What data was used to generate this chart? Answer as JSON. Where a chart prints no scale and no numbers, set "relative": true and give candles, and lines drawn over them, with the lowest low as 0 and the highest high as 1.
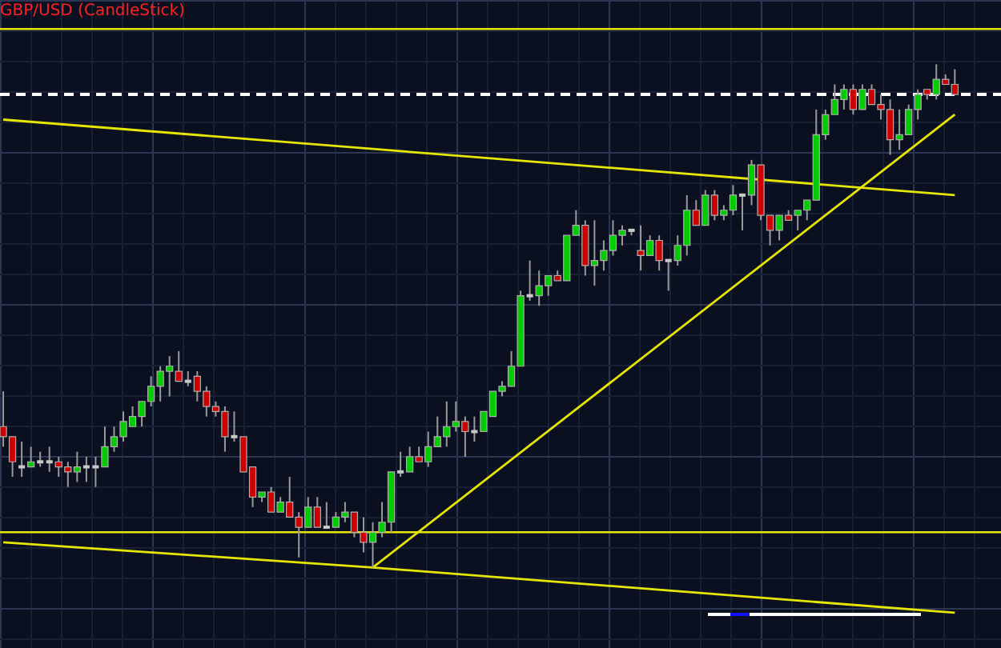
{
  "chart_data": {
    "type": "candlestick",
    "title": "GBP/USD (CandleStick)",
    "relative": true,
    "grid": true,
    "legend": false,
    "categories": [
      null,
      null,
      null,
      null,
      null,
      null,
      null,
      null,
      null,
      null,
      null,
      null,
      null,
      null,
      null,
      null,
      null,
      null,
      null,
      null,
      null,
      null,
      null,
      null,
      null,
      null,
      null,
      null,
      null,
      null,
      null,
      null,
      null,
      null,
      null,
      null,
      null,
      null,
      null,
      null,
      null,
      null,
      null,
      null,
      null,
      null,
      null,
      null,
      null,
      null,
      null,
      null,
      null,
      null,
      null,
      null,
      null,
      null,
      null,
      null,
      null,
      null,
      null,
      null,
      null,
      null,
      null,
      null,
      null,
      null,
      null,
      null,
      null,
      null,
      null,
      null,
      null,
      null,
      null,
      null,
      null,
      null,
      null,
      null,
      null,
      null,
      null,
      null,
      null,
      null,
      null,
      null,
      null,
      null,
      null,
      null,
      null,
      null,
      null,
      null,
      null,
      null,
      null,
      null
    ],
    "ohlc": [
      [
        0.28,
        0.35,
        0.24,
        0.26
      ],
      [
        0.26,
        0.26,
        0.18,
        0.21
      ],
      [
        0.2,
        0.25,
        0.18,
        0.2
      ],
      [
        0.2,
        0.24,
        0.2,
        0.21
      ],
      [
        0.21,
        0.23,
        0.2,
        0.21
      ],
      [
        0.21,
        0.24,
        0.19,
        0.21
      ],
      [
        0.21,
        0.22,
        0.18,
        0.2
      ],
      [
        0.2,
        0.21,
        0.16,
        0.19
      ],
      [
        0.19,
        0.23,
        0.17,
        0.2
      ],
      [
        0.2,
        0.22,
        0.17,
        0.2
      ],
      [
        0.2,
        0.22,
        0.16,
        0.2
      ],
      [
        0.2,
        0.28,
        0.2,
        0.24
      ],
      [
        0.24,
        0.28,
        0.23,
        0.26
      ],
      [
        0.26,
        0.31,
        0.25,
        0.29
      ],
      [
        0.28,
        0.32,
        0.28,
        0.3
      ],
      [
        0.3,
        0.33,
        0.28,
        0.33
      ],
      [
        0.33,
        0.38,
        0.32,
        0.36
      ],
      [
        0.36,
        0.4,
        0.33,
        0.39
      ],
      [
        0.39,
        0.42,
        0.34,
        0.4
      ],
      [
        0.39,
        0.43,
        0.37,
        0.37
      ],
      [
        0.37,
        0.39,
        0.36,
        0.37
      ],
      [
        0.38,
        0.39,
        0.33,
        0.35
      ],
      [
        0.35,
        0.36,
        0.3,
        0.32
      ],
      [
        0.32,
        0.33,
        0.3,
        0.31
      ],
      [
        0.31,
        0.32,
        0.23,
        0.26
      ],
      [
        0.26,
        0.31,
        0.25,
        0.26
      ],
      [
        0.26,
        0.26,
        0.19,
        0.19
      ],
      [
        0.2,
        0.2,
        0.12,
        0.14
      ],
      [
        0.14,
        0.15,
        0.13,
        0.15
      ],
      [
        0.15,
        0.16,
        0.11,
        0.11
      ],
      [
        0.11,
        0.14,
        0.11,
        0.13
      ],
      [
        0.13,
        0.18,
        0.1,
        0.1
      ],
      [
        0.1,
        0.11,
        0.02,
        0.08
      ],
      [
        0.08,
        0.14,
        0.08,
        0.12
      ],
      [
        0.12,
        0.14,
        0.08,
        0.08
      ],
      [
        0.08,
        0.13,
        0.08,
        0.08
      ],
      [
        0.08,
        0.11,
        0.08,
        0.1
      ],
      [
        0.1,
        0.13,
        0.09,
        0.11
      ],
      [
        0.11,
        0.11,
        0.06,
        0.07
      ],
      [
        0.07,
        0.1,
        0.03,
        0.05
      ],
      [
        0.05,
        0.09,
        0.0,
        0.07
      ],
      [
        0.07,
        0.13,
        0.06,
        0.09
      ],
      [
        0.09,
        0.19,
        0.07,
        0.19
      ],
      [
        0.19,
        0.23,
        0.18,
        0.19
      ],
      [
        0.19,
        0.24,
        0.19,
        0.22
      ],
      [
        0.22,
        0.24,
        0.21,
        0.21
      ],
      [
        0.21,
        0.27,
        0.2,
        0.24
      ],
      [
        0.24,
        0.3,
        0.24,
        0.26
      ],
      [
        0.26,
        0.33,
        0.24,
        0.28
      ],
      [
        0.28,
        0.33,
        0.27,
        0.29
      ],
      [
        0.29,
        0.3,
        0.22,
        0.27
      ],
      [
        0.27,
        0.3,
        0.25,
        0.27
      ],
      [
        0.27,
        0.31,
        0.27,
        0.31
      ],
      [
        0.3,
        0.35,
        0.3,
        0.35
      ],
      [
        0.35,
        0.37,
        0.34,
        0.36
      ],
      [
        0.36,
        0.43,
        0.36,
        0.4
      ],
      [
        0.4,
        0.55,
        0.4,
        0.54
      ],
      [
        0.54,
        0.61,
        0.53,
        0.54
      ],
      [
        0.54,
        0.59,
        0.52,
        0.56
      ],
      [
        0.56,
        0.58,
        0.54,
        0.58
      ],
      [
        0.58,
        0.59,
        0.57,
        0.57
      ],
      [
        0.57,
        0.66,
        0.57,
        0.66
      ],
      [
        0.66,
        0.71,
        0.66,
        0.68
      ],
      [
        0.68,
        0.69,
        0.58,
        0.6
      ],
      [
        0.6,
        0.69,
        0.56,
        0.61
      ],
      [
        0.61,
        0.65,
        0.59,
        0.63
      ],
      [
        0.63,
        0.69,
        0.62,
        0.66
      ],
      [
        0.66,
        0.68,
        0.64,
        0.67
      ],
      [
        0.67,
        0.67,
        0.66,
        0.67
      ],
      [
        0.63,
        0.68,
        0.59,
        0.62
      ],
      [
        0.62,
        0.66,
        0.62,
        0.65
      ],
      [
        0.65,
        0.66,
        0.59,
        0.61
      ],
      [
        0.61,
        0.61,
        0.55,
        0.61
      ],
      [
        0.61,
        0.66,
        0.6,
        0.64
      ],
      [
        0.64,
        0.74,
        0.62,
        0.71
      ],
      [
        0.71,
        0.73,
        0.68,
        0.68
      ],
      [
        0.68,
        0.75,
        0.68,
        0.74
      ],
      [
        0.74,
        0.75,
        0.69,
        0.7
      ],
      [
        0.7,
        0.72,
        0.69,
        0.71
      ],
      [
        0.71,
        0.76,
        0.7,
        0.74
      ],
      [
        0.74,
        0.74,
        0.67,
        0.74
      ],
      [
        0.74,
        0.81,
        0.72,
        0.8
      ],
      [
        0.8,
        0.8,
        0.69,
        0.7
      ],
      [
        0.7,
        0.7,
        0.64,
        0.67
      ],
      [
        0.67,
        0.7,
        0.65,
        0.7
      ],
      [
        0.7,
        0.71,
        0.69,
        0.69
      ],
      [
        0.7,
        0.71,
        0.67,
        0.71
      ],
      [
        0.71,
        0.73,
        0.69,
        0.73
      ],
      [
        0.73,
        0.91,
        0.73,
        0.86
      ],
      [
        0.86,
        0.91,
        0.85,
        0.9
      ],
      [
        0.9,
        0.96,
        0.9,
        0.93
      ],
      [
        0.93,
        0.96,
        0.91,
        0.95
      ],
      [
        0.95,
        0.96,
        0.9,
        0.91
      ],
      [
        0.91,
        0.96,
        0.91,
        0.95
      ],
      [
        0.95,
        0.96,
        0.92,
        0.92
      ],
      [
        0.92,
        0.94,
        0.89,
        0.91
      ],
      [
        0.91,
        0.93,
        0.82,
        0.85
      ],
      [
        0.85,
        0.91,
        0.83,
        0.86
      ],
      [
        0.86,
        0.92,
        0.86,
        0.91
      ],
      [
        0.91,
        0.95,
        0.89,
        0.94
      ],
      [
        0.95,
        0.95,
        0.93,
        0.94
      ],
      [
        0.94,
        1.0,
        0.93,
        0.97
      ],
      [
        0.97,
        0.98,
        0.96,
        0.96
      ],
      [
        0.96,
        0.99,
        0.94,
        0.94
      ]
    ],
    "colors": [
      "#cc0000",
      "#cc0000",
      "#c8c8c8",
      "#00cc00",
      "#c8c8c8",
      "#c8c8c8",
      "#cc0000",
      "#cc0000",
      "#00cc00",
      "#c8c8c8",
      "#c8c8c8",
      "#00cc00",
      "#00cc00",
      "#00cc00",
      "#00cc00",
      "#00cc00",
      "#00cc00",
      "#00cc00",
      "#00cc00",
      "#cc0000",
      "#c8c8c8",
      "#cc0000",
      "#cc0000",
      "#cc0000",
      "#cc0000",
      "#c8c8c8",
      "#cc0000",
      "#cc0000",
      "#00cc00",
      "#cc0000",
      "#00cc00",
      "#cc0000",
      "#cc0000",
      "#00cc00",
      "#cc0000",
      "#c8c8c8",
      "#00cc00",
      "#00cc00",
      "#cc0000",
      "#cc0000",
      "#00cc00",
      "#00cc00",
      "#00cc00",
      "#c8c8c8",
      "#00cc00",
      "#cc0000",
      "#00cc00",
      "#00cc00",
      "#00cc00",
      "#00cc00",
      "#cc0000",
      "#c8c8c8",
      "#00cc00",
      "#00cc00",
      "#00cc00",
      "#00cc00",
      "#00cc00",
      "#c8c8c8",
      "#00cc00",
      "#00cc00",
      "#cc0000",
      "#00cc00",
      "#00cc00",
      "#cc0000",
      "#00cc00",
      "#00cc00",
      "#00cc00",
      "#00cc00",
      "#c8c8c8",
      "#cc0000",
      "#00cc00",
      "#cc0000",
      "#c8c8c8",
      "#00cc00",
      "#00cc00",
      "#cc0000",
      "#00cc00",
      "#cc0000",
      "#00cc00",
      "#00cc00",
      "#c8c8c8",
      "#00cc00",
      "#cc0000",
      "#cc0000",
      "#00cc00",
      "#cc0000",
      "#00cc00",
      "#00cc00",
      "#00cc00",
      "#00cc00",
      "#00cc00",
      "#00cc00",
      "#cc0000",
      "#00cc00",
      "#cc0000",
      "#cc0000",
      "#cc0000",
      "#00cc00",
      "#00cc00",
      "#00cc00",
      "#cc0000",
      "#00cc00",
      "#cc0000",
      "#cc0000"
    ],
    "series": [
      {
        "type": "line",
        "color": "#e6e600",
        "values": [
          null,
          null,
          null,
          null,
          null,
          null,
          null,
          null,
          null,
          null,
          null,
          null,
          null,
          null,
          null,
          null,
          null,
          null,
          null,
          null,
          null,
          null,
          null,
          null,
          null,
          null,
          null,
          null,
          null,
          null,
          null,
          null,
          null,
          null,
          null,
          null,
          null,
          null,
          null,
          null,
          0,
          null,
          null,
          null,
          null,
          null,
          null,
          null,
          null,
          null,
          null,
          null,
          null,
          null,
          null,
          null,
          null,
          null,
          null,
          null,
          null,
          null,
          null,
          null,
          null,
          null,
          null,
          null,
          null,
          null,
          null,
          null,
          null,
          null,
          null,
          null,
          null,
          null,
          null,
          null,
          null,
          null,
          null,
          null,
          null,
          null,
          null,
          null,
          null,
          null,
          null,
          null,
          null,
          null,
          null,
          null,
          null,
          null,
          null,
          null,
          null,
          null,
          null,
          0.9
        ]
      },
      {
        "type": "line",
        "color": "#e6e600",
        "values": [
          0.89,
          null,
          null,
          null,
          null,
          null,
          null,
          null,
          null,
          null,
          null,
          null,
          null,
          null,
          null,
          null,
          null,
          null,
          null,
          null,
          null,
          null,
          null,
          null,
          null,
          null,
          null,
          null,
          null,
          null,
          null,
          null,
          null,
          null,
          null,
          null,
          null,
          null,
          null,
          null,
          null,
          null,
          null,
          null,
          null,
          null,
          null,
          null,
          null,
          null,
          null,
          null,
          null,
          null,
          null,
          null,
          null,
          null,
          null,
          null,
          null,
          null,
          null,
          null,
          null,
          null,
          null,
          null,
          null,
          null,
          null,
          null,
          null,
          null,
          null,
          null,
          null,
          null,
          null,
          null,
          null,
          null,
          null,
          null,
          null,
          null,
          null,
          null,
          null,
          null,
          null,
          null,
          null,
          null,
          null,
          null,
          null,
          null,
          null,
          null,
          null,
          null,
          null,
          0.74
        ]
      },
      {
        "type": "line",
        "color": "#e6e600",
        "values": [
          0.05,
          null,
          null,
          null,
          null,
          null,
          null,
          null,
          null,
          null,
          null,
          null,
          null,
          null,
          null,
          null,
          null,
          null,
          null,
          null,
          null,
          null,
          null,
          null,
          null,
          null,
          null,
          null,
          null,
          null,
          null,
          null,
          null,
          null,
          null,
          null,
          null,
          null,
          null,
          null,
          0,
          null,
          null,
          null,
          null,
          null,
          null,
          null,
          null,
          null,
          null,
          null,
          null,
          null,
          null,
          null,
          null,
          null,
          null,
          null,
          null,
          null,
          null,
          null,
          null,
          null,
          null,
          null,
          null,
          null,
          null,
          null,
          null,
          null,
          null,
          null,
          null,
          null,
          null,
          null,
          null,
          null,
          null,
          null,
          null,
          null,
          null,
          null,
          null,
          null,
          null,
          null,
          null,
          null,
          null,
          null,
          null,
          null,
          null,
          null,
          null,
          null,
          null,
          -0.09
        ]
      }
    ],
    "ref_lines": [
      {
        "axis": "y",
        "value": 1.07,
        "color": "#e6e600",
        "line_style": "solid"
      },
      {
        "axis": "y",
        "value": 0.07,
        "color": "#e6e600",
        "line_style": "solid"
      },
      {
        "axis": "y",
        "value": 0.94,
        "color": "#ffffff",
        "line_style": "dashed"
      }
    ]
  }
}
